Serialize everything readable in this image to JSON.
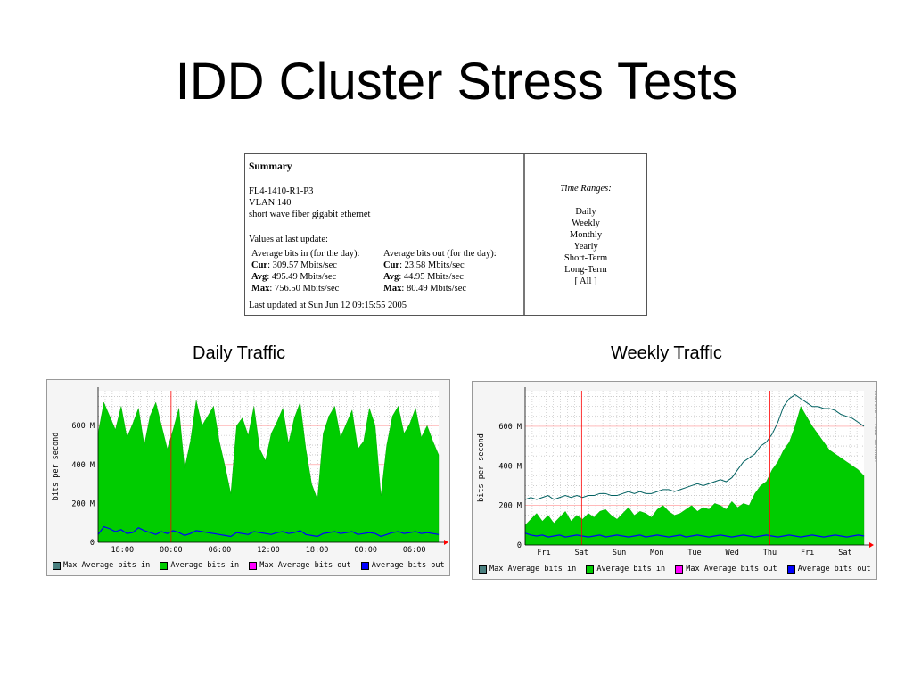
{
  "slide": {
    "title": "IDD Cluster Stress Tests"
  },
  "summary": {
    "heading": "Summary",
    "device_lines": [
      "FL4-1410-R1-P3",
      "VLAN 140",
      "short wave fiber gigabit ethernet"
    ],
    "values_label": "Values at last update:",
    "in_header": "Average bits in (for the day):",
    "out_header": "Average bits out (for the day):",
    "in_rows": [
      {
        "k": "Cur",
        "v": ": 309.57 Mbits/sec"
      },
      {
        "k": "Avg",
        "v": ": 495.49 Mbits/sec"
      },
      {
        "k": "Max",
        "v": ": 756.50 Mbits/sec"
      }
    ],
    "out_rows": [
      {
        "k": "Cur",
        "v": ": 23.58 Mbits/sec"
      },
      {
        "k": "Avg",
        "v": ": 44.95 Mbits/sec"
      },
      {
        "k": "Max",
        "v": ": 80.49 Mbits/sec"
      }
    ],
    "last_updated": "Last updated at Sun Jun 12 09:15:55 2005",
    "time_ranges_title": "Time Ranges:",
    "time_ranges": [
      "Daily",
      "Weekly",
      "Monthly",
      "Yearly",
      "Short-Term",
      "Long-Term",
      "[ All ]"
    ]
  },
  "captions": {
    "daily": "Daily Traffic",
    "weekly": "Weekly Traffic"
  },
  "colors": {
    "max_in": "#006060",
    "avg_in": "#00cc00",
    "max_out": "#ff00ff",
    "avg_out": "#0000ff",
    "grid": "#b0b0b0",
    "vgrid_major": "#ff0000"
  },
  "legend": [
    {
      "label": "Max Average bits in",
      "color": "#4a8080"
    },
    {
      "label": "Average bits in",
      "color": "#00cc00"
    },
    {
      "label": "Max Average bits out",
      "color": "#ff00ff"
    },
    {
      "label": "Average bits out",
      "color": "#0000ff"
    }
  ],
  "watermark": "RRDTOOL / TOBI OETIKER",
  "chart_data": [
    {
      "type": "area",
      "title": "Daily Traffic",
      "ylabel": "bits per second",
      "ylim": [
        0,
        780
      ],
      "yticks": [
        {
          "v": 0,
          "label": "0"
        },
        {
          "v": 200,
          "label": "200 M"
        },
        {
          "v": 400,
          "label": "400 M"
        },
        {
          "v": 600,
          "label": "600 M"
        }
      ],
      "xticks": [
        "18:00",
        "00:00",
        "06:00",
        "12:00",
        "18:00",
        "00:00",
        "06:00"
      ],
      "series": [
        {
          "name": "Average bits in",
          "values": [
            560,
            720,
            650,
            580,
            700,
            540,
            610,
            690,
            500,
            650,
            720,
            600,
            480,
            580,
            690,
            380,
            520,
            730,
            600,
            650,
            700,
            520,
            390,
            250,
            600,
            640,
            550,
            700,
            480,
            420,
            560,
            620,
            690,
            510,
            640,
            720,
            480,
            300,
            220,
            560,
            650,
            700,
            540,
            610,
            680,
            480,
            520,
            690,
            600,
            240,
            500,
            650,
            700,
            560,
            610,
            690,
            540,
            600,
            520,
            450
          ]
        },
        {
          "name": "Average bits out",
          "values": [
            40,
            80,
            70,
            55,
            65,
            45,
            50,
            75,
            60,
            50,
            40,
            55,
            45,
            60,
            50,
            35,
            45,
            60,
            55,
            50,
            45,
            40,
            35,
            30,
            50,
            45,
            40,
            55,
            50,
            45,
            40,
            50,
            55,
            45,
            50,
            60,
            40,
            35,
            30,
            45,
            50,
            55,
            45,
            50,
            55,
            40,
            45,
            50,
            45,
            30,
            40,
            50,
            55,
            45,
            50,
            55,
            45,
            50,
            45,
            40
          ]
        }
      ]
    },
    {
      "type": "area",
      "title": "Weekly Traffic",
      "ylabel": "bits per second",
      "ylim": [
        0,
        780
      ],
      "yticks": [
        {
          "v": 0,
          "label": "0"
        },
        {
          "v": 200,
          "label": "200 M"
        },
        {
          "v": 400,
          "label": "400 M"
        },
        {
          "v": 600,
          "label": "600 M"
        }
      ],
      "xticks": [
        "Fri",
        "Sat",
        "Sun",
        "Mon",
        "Tue",
        "Wed",
        "Thu",
        "Fri",
        "Sat"
      ],
      "series": [
        {
          "name": "Average bits in",
          "values": [
            100,
            130,
            160,
            120,
            150,
            110,
            140,
            170,
            120,
            150,
            130,
            160,
            140,
            170,
            180,
            150,
            130,
            160,
            190,
            150,
            170,
            160,
            140,
            180,
            200,
            170,
            150,
            160,
            180,
            200,
            170,
            190,
            180,
            210,
            200,
            180,
            220,
            190,
            210,
            200,
            260,
            300,
            320,
            380,
            420,
            480,
            520,
            600,
            700,
            650,
            600,
            560,
            520,
            480,
            460,
            440,
            420,
            400,
            380,
            350
          ]
        },
        {
          "name": "Max Average bits in",
          "values": [
            230,
            240,
            230,
            240,
            250,
            230,
            240,
            250,
            240,
            250,
            240,
            250,
            250,
            260,
            260,
            250,
            250,
            260,
            270,
            260,
            270,
            260,
            260,
            270,
            280,
            280,
            270,
            280,
            290,
            300,
            310,
            300,
            310,
            320,
            330,
            320,
            340,
            380,
            420,
            440,
            460,
            500,
            520,
            560,
            620,
            700,
            740,
            760,
            740,
            720,
            700,
            700,
            690,
            690,
            680,
            660,
            650,
            640,
            620,
            600
          ]
        },
        {
          "name": "Average bits out",
          "values": [
            60,
            50,
            45,
            50,
            40,
            45,
            50,
            40,
            45,
            50,
            45,
            40,
            45,
            50,
            40,
            45,
            50,
            45,
            40,
            45,
            50,
            40,
            45,
            50,
            45,
            40,
            45,
            50,
            40,
            45,
            50,
            45,
            40,
            45,
            50,
            45,
            40,
            45,
            50,
            45,
            40,
            45,
            50,
            45,
            40,
            45,
            50,
            45,
            40,
            45,
            50,
            45,
            40,
            45,
            50,
            45,
            40,
            45,
            50,
            45
          ]
        }
      ]
    }
  ]
}
